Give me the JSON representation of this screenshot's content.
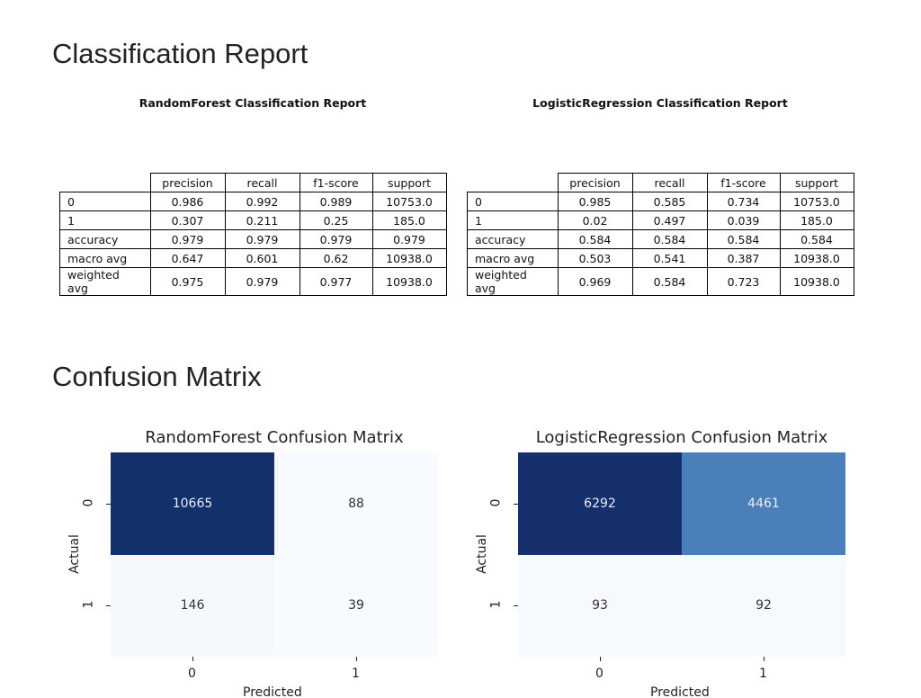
{
  "sections": [
    {
      "heading": "Classification Report"
    },
    {
      "heading": "Confusion Matrix"
    }
  ],
  "reports": [
    {
      "title": "RandomForest Classification Report",
      "columns": [
        "precision",
        "recall",
        "f1-score",
        "support"
      ],
      "rows": [
        {
          "label": "0",
          "cells": [
            "0.986",
            "0.992",
            "0.989",
            "10753.0"
          ]
        },
        {
          "label": "1",
          "cells": [
            "0.307",
            "0.211",
            "0.25",
            "185.0"
          ]
        },
        {
          "label": "accuracy",
          "cells": [
            "0.979",
            "0.979",
            "0.979",
            "0.979"
          ]
        },
        {
          "label": "macro avg",
          "cells": [
            "0.647",
            "0.601",
            "0.62",
            "10938.0"
          ]
        },
        {
          "label": "weighted avg",
          "cells": [
            "0.975",
            "0.979",
            "0.977",
            "10938.0"
          ]
        }
      ]
    },
    {
      "title": "LogisticRegression Classification Report",
      "columns": [
        "precision",
        "recall",
        "f1-score",
        "support"
      ],
      "rows": [
        {
          "label": "0",
          "cells": [
            "0.985",
            "0.585",
            "0.734",
            "10753.0"
          ]
        },
        {
          "label": "1",
          "cells": [
            "0.02",
            "0.497",
            "0.039",
            "185.0"
          ]
        },
        {
          "label": "accuracy",
          "cells": [
            "0.584",
            "0.584",
            "0.584",
            "0.584"
          ]
        },
        {
          "label": "macro avg",
          "cells": [
            "0.503",
            "0.541",
            "0.387",
            "10938.0"
          ]
        },
        {
          "label": "weighted avg",
          "cells": [
            "0.969",
            "0.584",
            "0.723",
            "10938.0"
          ]
        }
      ]
    }
  ],
  "matrices": [
    {
      "title": "RandomForest Confusion Matrix",
      "xlabel": "Predicted",
      "ylabel": "Actual",
      "xticks": [
        "0",
        "1"
      ],
      "yticks": [
        "0",
        "1"
      ],
      "cells": [
        [
          10665,
          88
        ],
        [
          146,
          39
        ]
      ],
      "colors": [
        [
          "#14306b",
          "#f7fbff"
        ],
        [
          "#f5f9fe",
          "#f7fbff"
        ]
      ]
    },
    {
      "title": "LogisticRegression Confusion Matrix",
      "xlabel": "Predicted",
      "ylabel": "Actual",
      "xticks": [
        "0",
        "1"
      ],
      "yticks": [
        "0",
        "1"
      ],
      "cells": [
        [
          6292,
          4461
        ],
        [
          93,
          92
        ]
      ],
      "colors": [
        [
          "#15306a",
          "#4a7fb9"
        ],
        [
          "#f6faff",
          "#f6faff"
        ]
      ]
    }
  ]
}
